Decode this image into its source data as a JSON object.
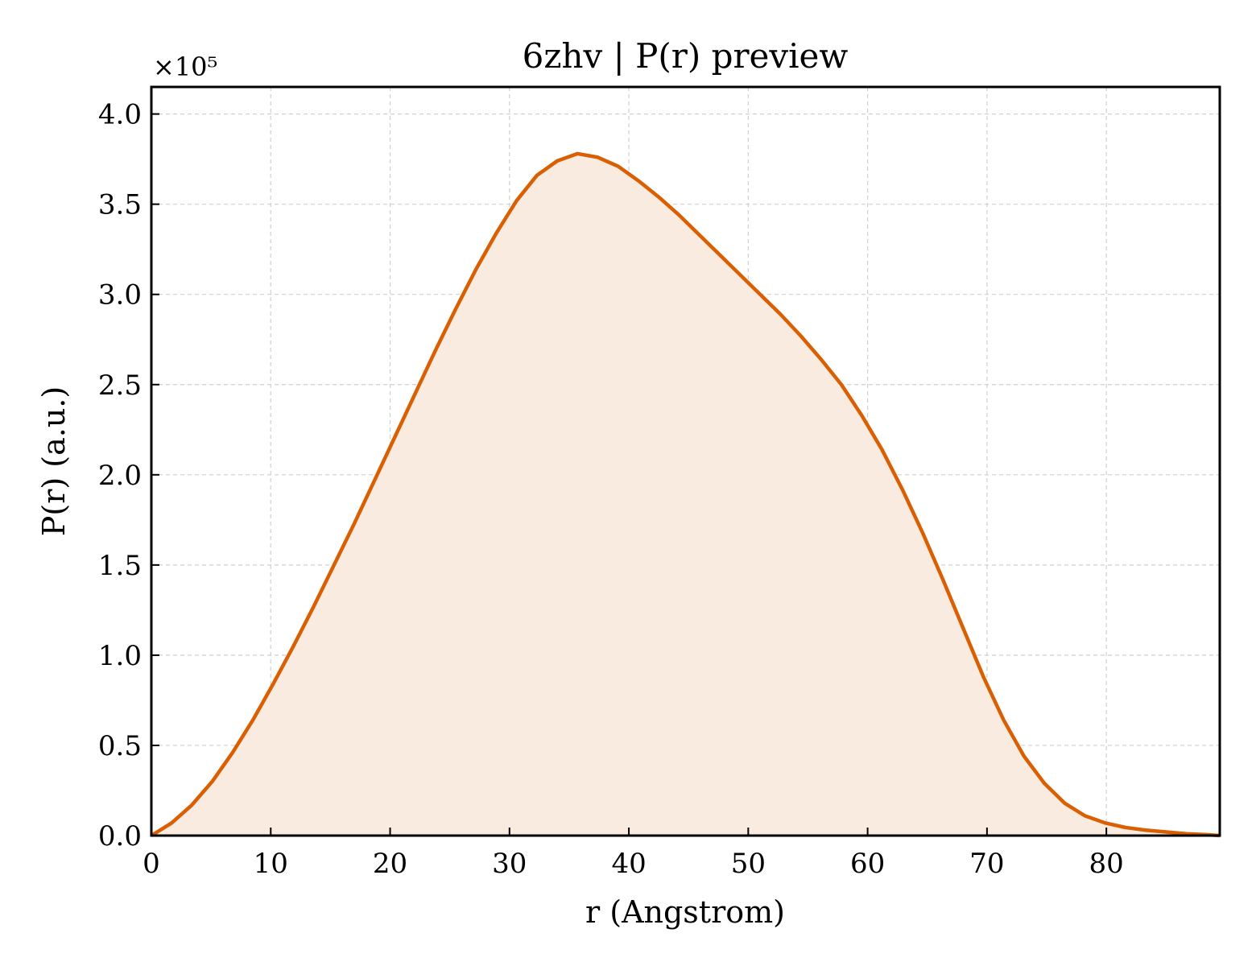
{
  "chart_data": {
    "type": "area",
    "title": "6zhv | P(r) preview",
    "xlabel": "r (Angstrom)",
    "ylabel": "P(r) (a.u.)",
    "y_multiplier_label": "×10⁵",
    "xlim": [
      0,
      89.5
    ],
    "ylim": [
      0,
      4.15
    ],
    "xticks": [
      0,
      10,
      20,
      30,
      40,
      50,
      60,
      70,
      80
    ],
    "yticks": [
      0.0,
      0.5,
      1.0,
      1.5,
      2.0,
      2.5,
      3.0,
      3.5,
      4.0
    ],
    "xtick_labels": [
      "0",
      "10",
      "20",
      "30",
      "40",
      "50",
      "60",
      "70",
      "80"
    ],
    "ytick_labels": [
      "0.0",
      "0.5",
      "1.0",
      "1.5",
      "2.0",
      "2.5",
      "3.0",
      "3.5",
      "4.0"
    ],
    "grid": true,
    "line_color": "#d95f02",
    "fill_color": "#f9ebe0",
    "series": [
      {
        "x": [
          0,
          1.7,
          3.4,
          5.1,
          6.8,
          8.5,
          10.2,
          11.9,
          13.6,
          15.3,
          17.0,
          18.7,
          20.4,
          22.1,
          23.8,
          25.5,
          27.2,
          28.9,
          30.6,
          32.3,
          34.0,
          35.7,
          37.4,
          39.1,
          40.8,
          42.5,
          44.2,
          45.9,
          47.6,
          49.3,
          51.0,
          52.7,
          54.4,
          56.1,
          57.8,
          59.5,
          61.2,
          62.9,
          64.6,
          66.3,
          68.0,
          69.7,
          71.4,
          73.1,
          74.8,
          76.5,
          78.2,
          79.9,
          81.6,
          83.3,
          85.0,
          86.7,
          88.4,
          89.5
        ],
        "y": [
          0.0,
          0.07,
          0.17,
          0.3,
          0.46,
          0.64,
          0.84,
          1.05,
          1.27,
          1.5,
          1.73,
          1.97,
          2.21,
          2.45,
          2.69,
          2.92,
          3.14,
          3.34,
          3.52,
          3.66,
          3.74,
          3.78,
          3.76,
          3.71,
          3.63,
          3.54,
          3.44,
          3.33,
          3.22,
          3.11,
          3.0,
          2.89,
          2.77,
          2.64,
          2.5,
          2.33,
          2.14,
          1.92,
          1.68,
          1.42,
          1.15,
          0.88,
          0.64,
          0.44,
          0.29,
          0.18,
          0.11,
          0.07,
          0.045,
          0.03,
          0.02,
          0.01,
          0.005,
          0.0
        ]
      }
    ]
  }
}
